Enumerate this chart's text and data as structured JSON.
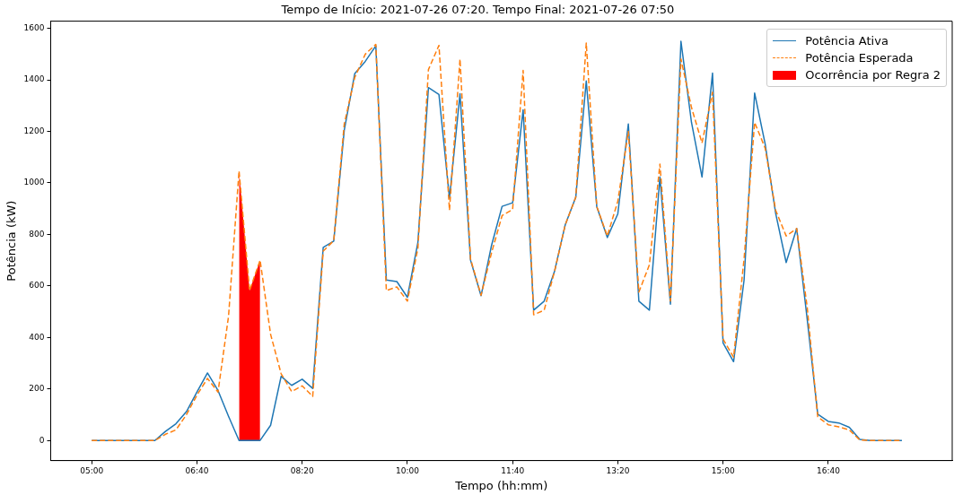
{
  "chart_data": {
    "type": "line",
    "title": "Tempo de Início: 2021-07-26 07:20. Tempo Final: 2021-07-26 07:50",
    "xlabel": "Tempo (hh:mm)",
    "ylabel": "Potência (kW)",
    "x": [
      5,
      5.1667,
      5.3333,
      5.5,
      5.6667,
      5.8333,
      6,
      6.1667,
      6.3333,
      6.5,
      6.6667,
      6.8333,
      7,
      7.1667,
      7.3333,
      7.5,
      7.6667,
      7.8333,
      8,
      8.1667,
      8.3333,
      8.5,
      8.6667,
      8.8333,
      9,
      9.1667,
      9.3333,
      9.5,
      9.6667,
      9.8333,
      10,
      10.1667,
      10.3333,
      10.5,
      10.6667,
      10.8333,
      11,
      11.1667,
      11.3333,
      11.5,
      11.6667,
      11.8333,
      12,
      12.1667,
      12.3333,
      12.5,
      12.6667,
      12.8333,
      13,
      13.1667,
      13.3333,
      13.5,
      13.6667,
      13.8333,
      14,
      14.1667,
      14.3333,
      14.5,
      14.6667,
      14.8333,
      15,
      15.1667,
      15.3333,
      15.5,
      15.6667,
      15.8333,
      16,
      16.1667,
      16.3333,
      16.5,
      16.6667,
      16.8333,
      17,
      17.1667,
      17.3333,
      17.5,
      17.6667,
      17.8333
    ],
    "series": [
      {
        "name": "Potência Ativa",
        "color": "#1f77b4",
        "line_style": "solid",
        "values": [
          0,
          0,
          0,
          0,
          0,
          0,
          0,
          35,
          65,
          112,
          188,
          262,
          194,
          94,
          0,
          0,
          0,
          59,
          249,
          214,
          238,
          202,
          750,
          774,
          1205,
          1425,
          1472,
          1532,
          623,
          617,
          556,
          770,
          1370,
          1343,
          941,
          1346,
          700,
          562,
          758,
          909,
          923,
          1284,
          506,
          541,
          659,
          837,
          944,
          1396,
          908,
          788,
          880,
          1229,
          541,
          506,
          1023,
          529,
          1550,
          1235,
          1023,
          1426,
          379,
          306,
          623,
          1349,
          1152,
          882,
          691,
          823,
          470,
          102,
          74,
          68,
          51,
          4,
          0,
          0,
          0,
          0
        ]
      },
      {
        "name": "Potência Esperada",
        "color": "#ff7f0e",
        "line_style": "dashed",
        "values": [
          0,
          0,
          0,
          0,
          0,
          0,
          0,
          24,
          41,
          100,
          176,
          241,
          188,
          482,
          1047,
          582,
          700,
          412,
          259,
          190,
          212,
          171,
          735,
          776,
          1229,
          1410,
          1500,
          1538,
          582,
          596,
          541,
          747,
          1440,
          1534,
          894,
          1481,
          705,
          564,
          729,
          873,
          897,
          1437,
          488,
          506,
          659,
          837,
          944,
          1543,
          908,
          794,
          929,
          1200,
          576,
          682,
          1073,
          541,
          1481,
          1293,
          1155,
          1352,
          394,
          323,
          705,
          1235,
          1135,
          894,
          794,
          823,
          517,
          92,
          61,
          53,
          41,
          2,
          0,
          0,
          0,
          0
        ]
      },
      {
        "name": "Ocorrência por Regra 2",
        "type": "area",
        "color": "#ff0000",
        "x": [
          7.3333,
          7.5,
          7.6667
        ],
        "values": [
          1047,
          582,
          700
        ]
      }
    ],
    "xlim": [
      4.35,
      18.63
    ],
    "xticks": [
      {
        "value": 5,
        "label": "05:00"
      },
      {
        "value": 6.6667,
        "label": "06:40"
      },
      {
        "value": 8.3333,
        "label": "08:20"
      },
      {
        "value": 10,
        "label": "10:00"
      },
      {
        "value": 11.6667,
        "label": "11:40"
      },
      {
        "value": 13.3333,
        "label": "13:20"
      },
      {
        "value": 15,
        "label": "15:00"
      },
      {
        "value": 16.6667,
        "label": "16:40"
      }
    ],
    "ylim": [
      -78,
      1628
    ],
    "yticks": [
      0,
      200,
      400,
      600,
      800,
      1000,
      1200,
      1400,
      1600
    ],
    "grid": false,
    "legend": "top right",
    "marker": "none"
  }
}
